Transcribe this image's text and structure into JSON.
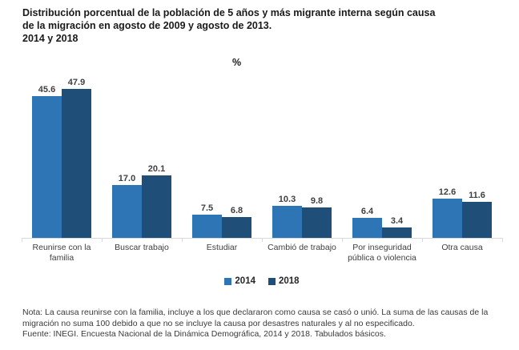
{
  "title": {
    "line1": "Distribución porcentual de la población de 5 años y más migrante interna según causa",
    "line2": "de la migración en agosto de 2009 y agosto de 2013.",
    "line3": "2014 y 2018"
  },
  "chart_data": {
    "type": "bar",
    "title": "Distribución porcentual de la población de 5 años y más migrante interna según causa de la migración en agosto de 2009 y agosto de 2013. 2014 y 2018",
    "unit_label": "%",
    "categories": [
      "Reunirse con la familia",
      "Buscar trabajo",
      "Estudiar",
      "Cambió de trabajo",
      "Por inseguridad pública o violencia",
      "Otra causa"
    ],
    "series": [
      {
        "name": "2014",
        "color": "#2E75B5",
        "values": [
          45.6,
          17.0,
          7.5,
          10.3,
          6.4,
          12.6
        ]
      },
      {
        "name": "2018",
        "color": "#1F4E79",
        "values": [
          47.9,
          20.1,
          6.8,
          9.8,
          3.4,
          11.6
        ]
      }
    ],
    "ylim": [
      0,
      50
    ],
    "grid": false,
    "legend_position": "bottom",
    "value_labels": true,
    "value_label_format": "0.0"
  },
  "notes": {
    "nota": "Nota: La causa reunirse con la familia, incluye a los que declararon como causa se casó o unió. La suma de las causas de la migración no suma 100 debido a que no se incluye la causa por desastres naturales y al no especificado.",
    "fuente": "Fuente: INEGI. Encuesta Nacional de la Dinámica Demográfica, 2014 y 2018. Tabulados básicos."
  }
}
